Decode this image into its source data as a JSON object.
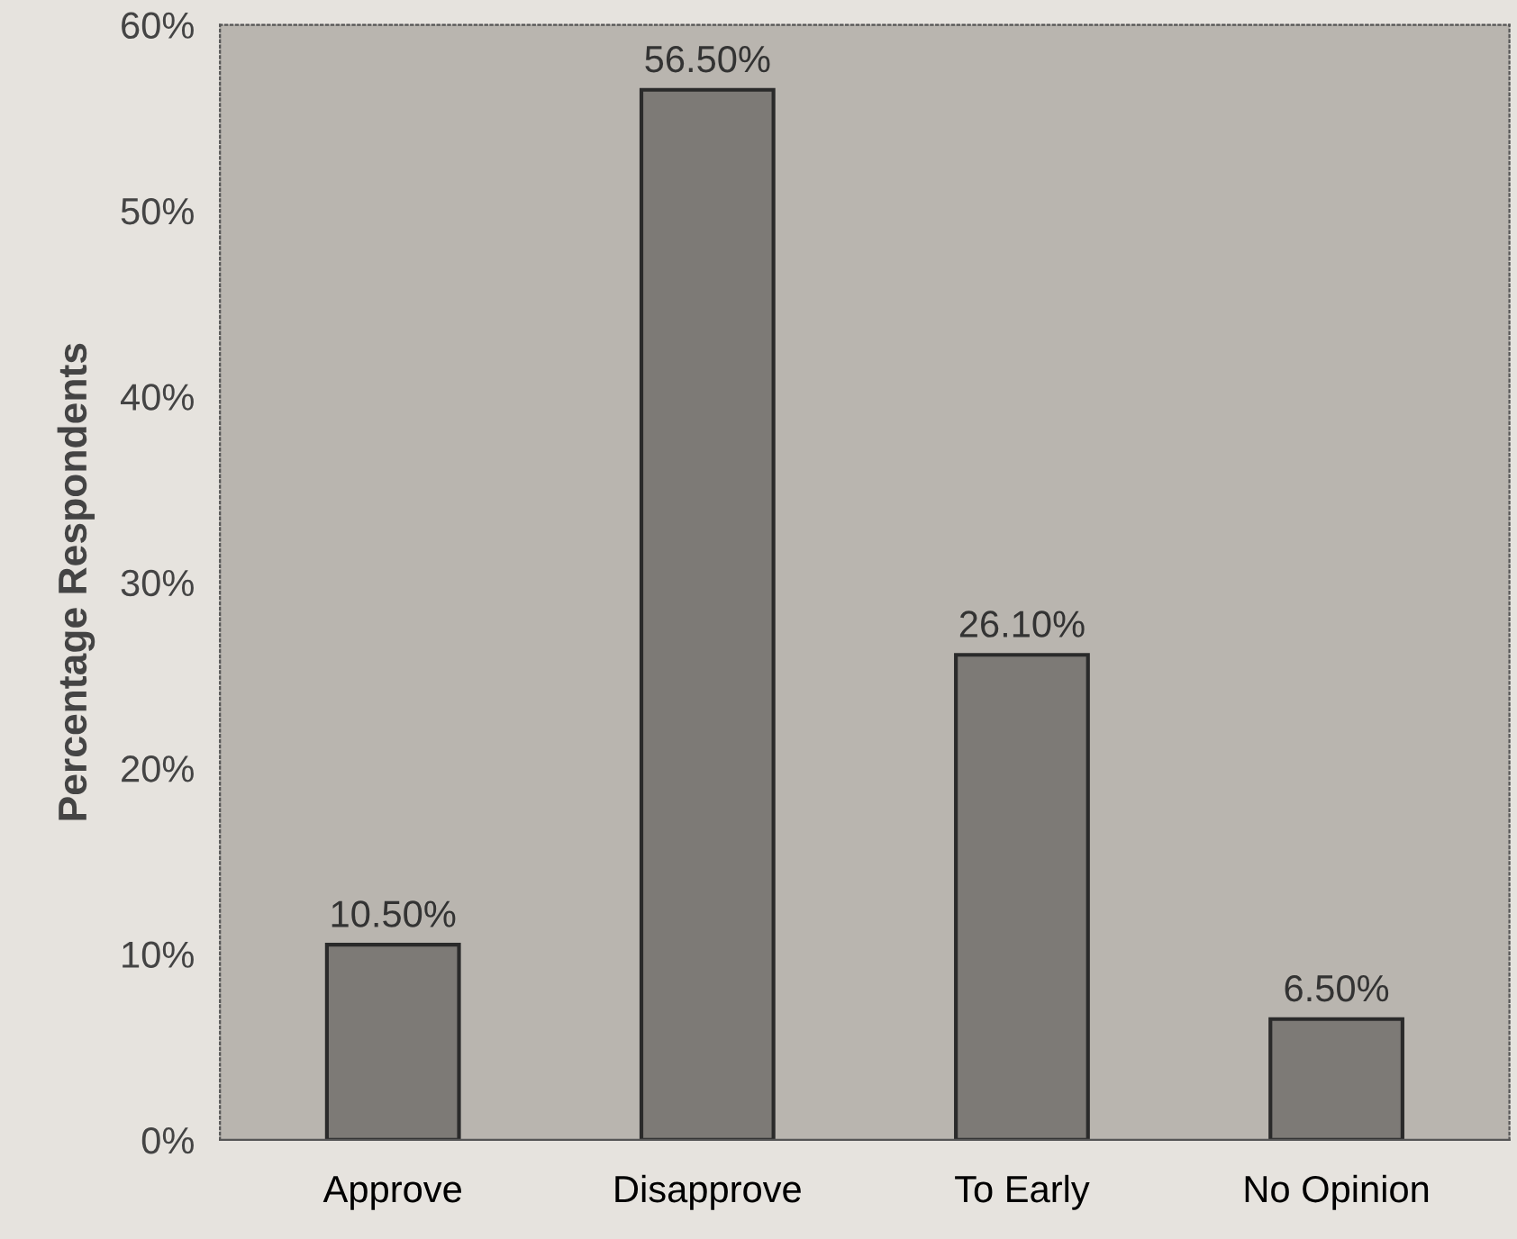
{
  "chart_data": {
    "type": "bar",
    "ylabel": "Percentage Respondents",
    "categories": [
      "Approve",
      "Disapprove",
      "To Early",
      "No Opinion"
    ],
    "values": [
      10.5,
      56.5,
      26.1,
      6.5
    ],
    "value_labels": [
      "10.50%",
      "56.50%",
      "26.10%",
      "6.50%"
    ],
    "color": "#7d7a76",
    "ylim": [
      0,
      60
    ],
    "yticks": [
      {
        "value": 0,
        "label": "0%"
      },
      {
        "value": 10,
        "label": "10%"
      },
      {
        "value": 20,
        "label": "20%"
      },
      {
        "value": 30,
        "label": "30%"
      },
      {
        "value": 40,
        "label": "40%"
      },
      {
        "value": 50,
        "label": "50%"
      },
      {
        "value": 60,
        "label": "60%"
      }
    ]
  }
}
